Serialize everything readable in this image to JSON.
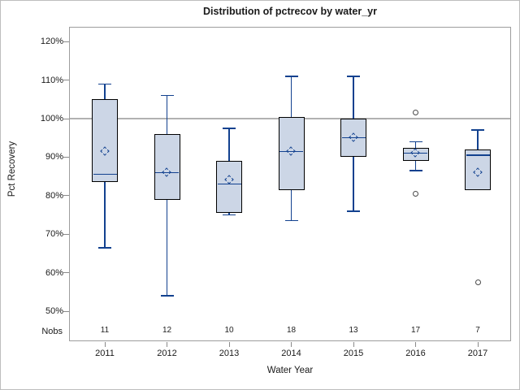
{
  "chart_data": {
    "type": "boxplot",
    "title": "Distribution of pctrecov by water_yr",
    "xlabel": "Water Year",
    "ylabel": "Pct Recovery",
    "nobs_label": "Nobs",
    "y_axis": {
      "tick_values": [
        120,
        110,
        100,
        90,
        80,
        70,
        60,
        50
      ],
      "tick_suffix": "%",
      "range_pct": [
        42,
        124
      ]
    },
    "reference_line": 100,
    "categories": [
      "2011",
      "2012",
      "2013",
      "2014",
      "2015",
      "2016",
      "2017"
    ],
    "nobs": [
      11,
      12,
      10,
      18,
      13,
      17,
      7
    ],
    "boxes": [
      {
        "year": "2011",
        "n": 11,
        "whisker_low": 66.5,
        "q1": 83.5,
        "median": 85.5,
        "mean": 91.5,
        "q3": 105,
        "whisker_high": 109,
        "outliers": []
      },
      {
        "year": "2012",
        "n": 12,
        "whisker_low": 54,
        "q1": 79,
        "median": 86,
        "mean": 86,
        "q3": 96,
        "whisker_high": 106,
        "outliers": []
      },
      {
        "year": "2013",
        "n": 10,
        "whisker_low": 75,
        "q1": 75.5,
        "median": 83,
        "mean": 84,
        "q3": 89,
        "whisker_high": 97.5,
        "outliers": []
      },
      {
        "year": "2014",
        "n": 18,
        "whisker_low": 73.5,
        "q1": 81.5,
        "median": 91.5,
        "mean": 91.5,
        "q3": 100.5,
        "whisker_high": 111,
        "outliers": []
      },
      {
        "year": "2015",
        "n": 13,
        "whisker_low": 76,
        "q1": 90,
        "median": 95,
        "mean": 95,
        "q3": 100,
        "whisker_high": 111,
        "outliers": []
      },
      {
        "year": "2016",
        "n": 17,
        "whisker_low": 86.5,
        "q1": 89,
        "median": 91,
        "mean": 91,
        "q3": 92.5,
        "whisker_high": 94,
        "outliers": [
          101.5,
          80.5
        ]
      },
      {
        "year": "2017",
        "n": 7,
        "whisker_low": 81.5,
        "q1": 81.5,
        "median": 90.5,
        "mean": 86,
        "q3": 92,
        "whisker_high": 97,
        "outliers": [
          57.5
        ]
      }
    ],
    "colors": {
      "box_fill": "#ccd6e6",
      "box_border": "#000000",
      "line": "#12418f",
      "reference_line": "#b1b1b1",
      "outlier_stroke": "#4a4a4a",
      "frame": "#9d9d9d"
    }
  }
}
